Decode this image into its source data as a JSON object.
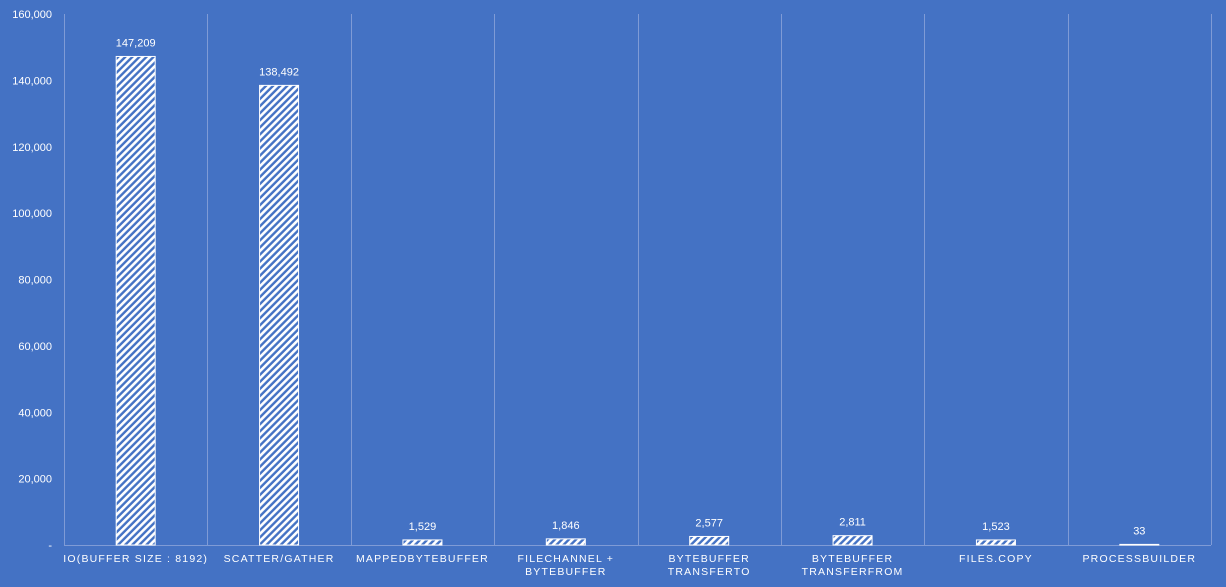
{
  "chart_data": {
    "type": "bar",
    "title": "",
    "xlabel": "",
    "ylabel": "",
    "categories": [
      [
        "IO(BUFFER SIZE : 8192)"
      ],
      [
        "SCATTER/GATHER"
      ],
      [
        "MAPPEDBYTEBUFFER"
      ],
      [
        "FILECHANNEL +",
        "BYTEBUFFER"
      ],
      [
        "BYTEBUFFER",
        "TRANSFERTO"
      ],
      [
        "BYTEBUFFER",
        "TRANSFERFROM"
      ],
      [
        "FILES.COPY"
      ],
      [
        "PROCESSBUILDER"
      ]
    ],
    "values": [
      147209,
      138492,
      1529,
      1846,
      2577,
      2811,
      1523,
      33
    ],
    "data_labels": [
      "147,209",
      "138,492",
      "1,529",
      "1,846",
      "2,577",
      "2,811",
      "1,523",
      "33"
    ],
    "ylim": [
      0,
      160000
    ],
    "yticks": [
      0,
      20000,
      40000,
      60000,
      80000,
      100000,
      120000,
      140000,
      160000
    ],
    "ytick_labels": [
      "-",
      "20,000",
      "40,000",
      "60,000",
      "80,000",
      "100,000",
      "120,000",
      "140,000",
      "160,000"
    ],
    "grid": "vertical category separators",
    "legend": "none",
    "bar_fill": "white diagonal hatch",
    "colors": {
      "background": "#4472C4",
      "bar_hatch": "#ffffff",
      "gridline": "#7F9BD6",
      "text": "#ffffff"
    }
  }
}
